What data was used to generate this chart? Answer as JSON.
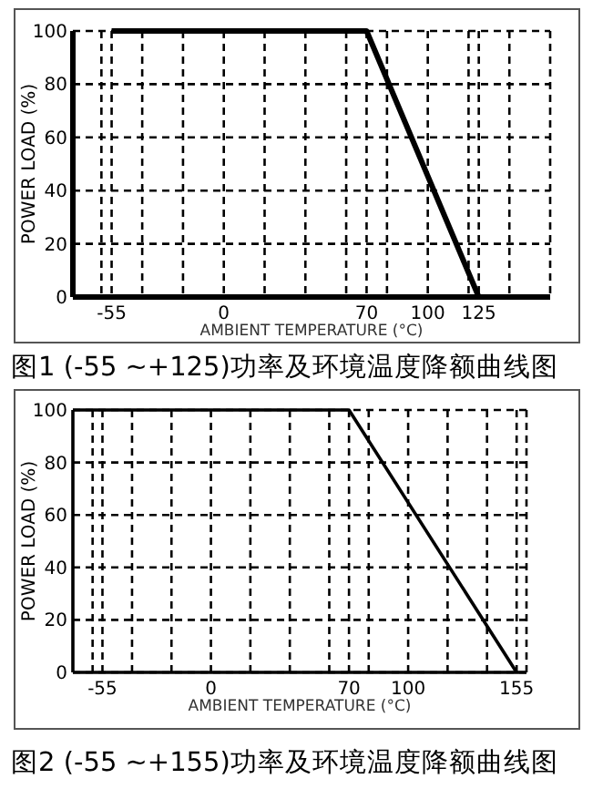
{
  "chart_data": [
    {
      "type": "line",
      "title": "图1 (-55 ~+125)功率及环境温度降额曲线图",
      "xlabel": "AMBIENT TEMPERATURE (°C)",
      "ylabel": "POWER LOAD (%)",
      "x": [
        -55,
        70,
        125
      ],
      "values": [
        100,
        100,
        0
      ],
      "color": "#000000",
      "xlim": [
        -74,
        160
      ],
      "ylim": [
        0,
        100
      ],
      "xticks": [
        {
          "value": -60,
          "label": null
        },
        -55,
        {
          "value": -40,
          "label": null
        },
        {
          "value": -20,
          "label": null
        },
        0,
        {
          "value": 20,
          "label": null
        },
        {
          "value": 40,
          "label": null
        },
        {
          "value": 60,
          "label": null
        },
        70,
        {
          "value": 80,
          "label": null
        },
        100,
        {
          "value": 120,
          "label": null
        },
        125,
        {
          "value": 140,
          "label": null
        },
        {
          "value": 160,
          "label": null
        }
      ],
      "yticks": [
        0,
        20,
        40,
        60,
        80,
        100
      ],
      "grid": true
    },
    {
      "type": "line",
      "title": "图2 (-55 ~+155)功率及环境温度降额曲线图",
      "xlabel": "AMBIENT TEMPERATURE (°C)",
      "ylabel": "POWER LOAD (%)",
      "x": [
        -70,
        70,
        155
      ],
      "values": [
        100,
        100,
        0
      ],
      "color": "#000000",
      "xlim": [
        -70,
        160
      ],
      "ylim": [
        0,
        100
      ],
      "xticks": [
        {
          "value": -60,
          "label": null
        },
        -55,
        {
          "value": -40,
          "label": null
        },
        {
          "value": -20,
          "label": null
        },
        0,
        {
          "value": 20,
          "label": null
        },
        {
          "value": 40,
          "label": null
        },
        {
          "value": 60,
          "label": null
        },
        70,
        {
          "value": 80,
          "label": null
        },
        100,
        {
          "value": 120,
          "label": null
        },
        {
          "value": 140,
          "label": null
        },
        155,
        {
          "value": 160,
          "label": null
        }
      ],
      "yticks": [
        0,
        20,
        40,
        60,
        80,
        100
      ],
      "grid": true
    }
  ]
}
